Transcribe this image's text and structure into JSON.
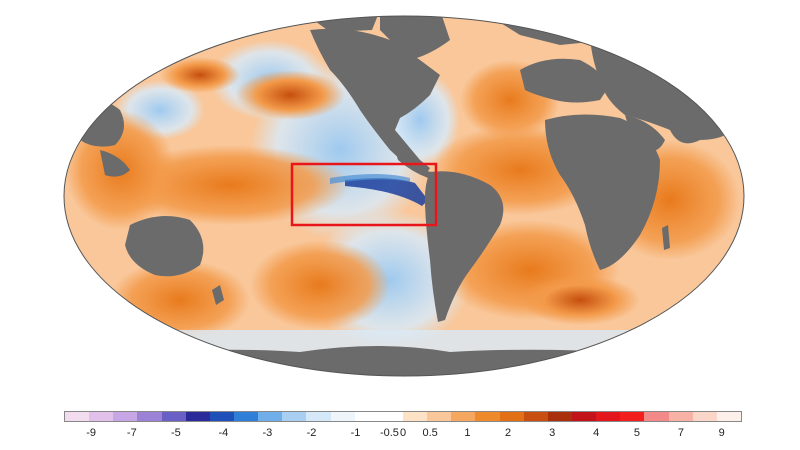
{
  "map": {
    "projection": "Mollweide",
    "land_color": "#6b6b6b",
    "ice_color": "#ffffff",
    "highlight_box_color": "#e8161b",
    "highlight_box_region": "eastern equatorial Pacific (Niño region)",
    "colors": {
      "warm_light": "#f9c79a",
      "warm": "#f39a49",
      "warm_strong": "#e87a1c",
      "warm_hot": "#c64f0e",
      "neutral": "#f7f5f2",
      "cool_light": "#d9eaf8",
      "cool": "#9ec9ee",
      "cool_strong": "#4a8fd6",
      "cool_deep": "#1b3f9e"
    }
  },
  "legend": {
    "colors": [
      "#f3dcef",
      "#e1c0ea",
      "#c7a6e6",
      "#9b82d7",
      "#6a5fc5",
      "#2a2a9b",
      "#1f4fb8",
      "#2f7fd8",
      "#6faee8",
      "#a8cff1",
      "#d5e8f7",
      "#eef5fb",
      "#ffffff",
      "#ffffff",
      "#fde2c6",
      "#f9c79a",
      "#f5a760",
      "#ee8a2c",
      "#e27016",
      "#c94f10",
      "#a8300c",
      "#c2121a",
      "#e3161c",
      "#f31e1e",
      "#f38a8a",
      "#f7b1a5",
      "#fad6c9",
      "#fdf0ea"
    ],
    "ticks": [
      "-9",
      "-7",
      "-5",
      "-4",
      "-3",
      "-2",
      "-1",
      "-0.5",
      "0",
      "0.5",
      "1",
      "2",
      "3",
      "4",
      "5",
      "7",
      "9"
    ],
    "tick_positions": [
      0.04,
      0.1,
      0.165,
      0.235,
      0.3,
      0.365,
      0.43,
      0.48,
      0.5,
      0.54,
      0.595,
      0.655,
      0.72,
      0.785,
      0.845,
      0.91,
      0.97
    ]
  }
}
